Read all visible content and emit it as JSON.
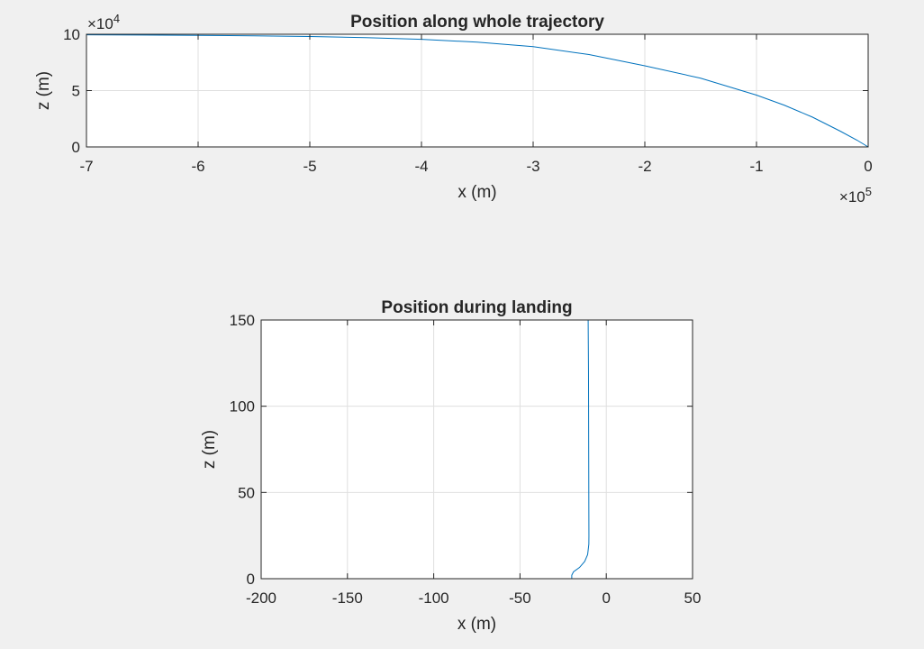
{
  "chart_data": [
    {
      "type": "line",
      "title": "Position along whole trajectory",
      "xlabel": "x (m)",
      "ylabel": "z (m)",
      "xlim": [
        -7,
        0
      ],
      "ylim": [
        0,
        10
      ],
      "xticks": [
        -7,
        -6,
        -5,
        -4,
        -3,
        -2,
        -1,
        0
      ],
      "yticks": [
        0,
        5,
        10
      ],
      "x_exponent_base": "×10",
      "x_exponent_power": "5",
      "y_exponent_base": "×10",
      "y_exponent_power": "4",
      "grid": true,
      "line_color": "#0072bd",
      "series": [
        {
          "x": [
            -7,
            -6.5,
            -6,
            -5.5,
            -5,
            -4.5,
            -4,
            -3.5,
            -3,
            -2.5,
            -2,
            -1.5,
            -1,
            -0.75,
            -0.5,
            -0.25,
            -0.1,
            0
          ],
          "y": [
            9.95,
            9.93,
            9.9,
            9.86,
            9.8,
            9.7,
            9.55,
            9.3,
            8.9,
            8.2,
            7.2,
            6.1,
            4.6,
            3.7,
            2.65,
            1.4,
            0.6,
            0
          ]
        }
      ]
    },
    {
      "type": "line",
      "title": "Position during landing",
      "xlabel": "x (m)",
      "ylabel": "z (m)",
      "xlim": [
        -200,
        50
      ],
      "ylim": [
        0,
        150
      ],
      "xticks": [
        -200,
        -150,
        -100,
        -50,
        0,
        50
      ],
      "yticks": [
        0,
        50,
        100,
        150
      ],
      "grid": true,
      "line_color": "#0072bd",
      "series": [
        {
          "x": [
            -10.5,
            -10.3,
            -10.2,
            -10.1,
            -10.05,
            -10.1,
            -10.8,
            -12.5,
            -15.5,
            -19,
            -20,
            -20
          ],
          "y": [
            150,
            120,
            80,
            40,
            25,
            20,
            14,
            10,
            6.5,
            4,
            2,
            0
          ]
        }
      ]
    }
  ]
}
